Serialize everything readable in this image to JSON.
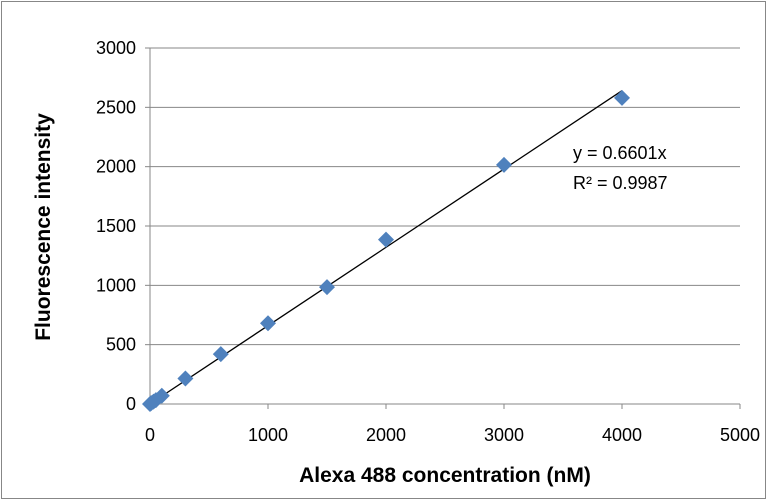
{
  "chart_data": {
    "type": "scatter",
    "title": "",
    "xlabel": "Alexa 488 concentration (nM)",
    "ylabel": "Fluorescence intensity",
    "xlim": [
      0,
      5000
    ],
    "ylim": [
      0,
      3000
    ],
    "xticks": [
      0,
      1000,
      2000,
      3000,
      4000,
      5000
    ],
    "yticks": [
      0,
      500,
      1000,
      1500,
      2000,
      2500,
      3000
    ],
    "grid": "horizontal",
    "legend": "none",
    "series": [
      {
        "marker": "diamond",
        "color": "#4F81BD",
        "points": [
          {
            "x": 0,
            "y": 0
          },
          {
            "x": 10,
            "y": 7
          },
          {
            "x": 30,
            "y": 20
          },
          {
            "x": 50,
            "y": 33
          },
          {
            "x": 100,
            "y": 70
          },
          {
            "x": 300,
            "y": 215
          },
          {
            "x": 600,
            "y": 420
          },
          {
            "x": 1000,
            "y": 680
          },
          {
            "x": 1500,
            "y": 985
          },
          {
            "x": 2000,
            "y": 1385
          },
          {
            "x": 3000,
            "y": 2015
          },
          {
            "x": 4000,
            "y": 2580
          }
        ]
      }
    ],
    "trendline": {
      "type": "linear-through-origin",
      "slope": 0.6601,
      "x_range": [
        0,
        4000
      ],
      "equation_label": "y = 0.6601x",
      "r2_label": "R² = 0.9987"
    }
  }
}
